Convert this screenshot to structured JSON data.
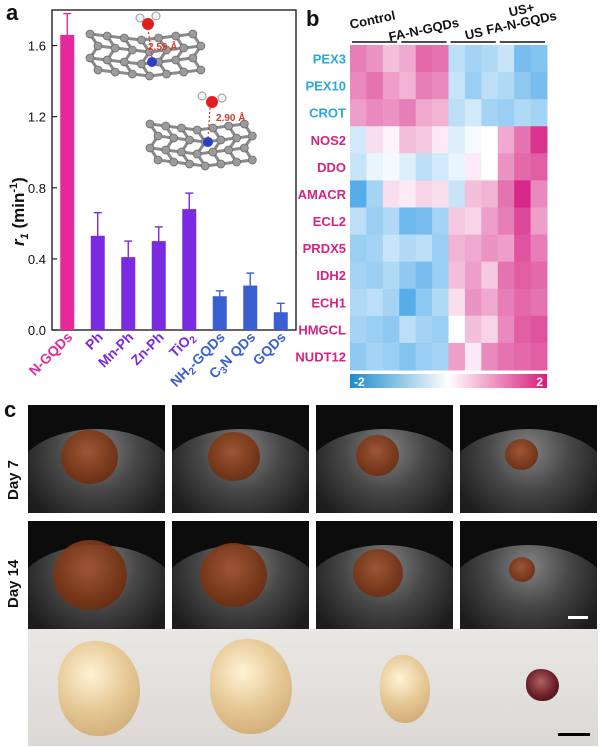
{
  "panels": {
    "a": "a",
    "b": "b",
    "c": "c"
  },
  "chart_data": [
    {
      "type": "bar",
      "ylabel": "r1 (min-1)",
      "ylim": [
        0,
        1.8
      ],
      "yticks": [
        "0.0",
        "0.4",
        "0.8",
        "1.2",
        "1.6"
      ],
      "categories": [
        "N-GQDs",
        "Ph",
        "Mn-Ph",
        "Zn-Ph",
        "TiO2",
        "NH2-GQDs",
        "C3N QDs",
        "GQDs"
      ],
      "category_colors": [
        "#e6289a",
        "#7a2ae0",
        "#7a2ae0",
        "#7a2ae0",
        "#7a2ae0",
        "#3a5fd0",
        "#3a5fd0",
        "#3a5fd0"
      ],
      "values": [
        1.66,
        0.53,
        0.41,
        0.5,
        0.68,
        0.19,
        0.25,
        0.1
      ],
      "errors": [
        0.12,
        0.13,
        0.09,
        0.08,
        0.09,
        0.03,
        0.07,
        0.05
      ],
      "annotations": [
        "2.59 Å",
        "2.90 Å"
      ]
    },
    {
      "type": "heatmap",
      "column_groups": [
        "Control",
        "FA-N-GQDs",
        "US",
        "US+\nFA-N-GQDs"
      ],
      "rows": [
        "PEX3",
        "PEX10",
        "CROT",
        "NOS2",
        "DDO",
        "AMACR",
        "ECL2",
        "PRDX5",
        "IDH2",
        "ECH1",
        "HMGCL",
        "NUDT12"
      ],
      "row_colors": [
        "#2aa8d8",
        "#2aa8d8",
        "#2aa8d8",
        "#d4247f",
        "#d4247f",
        "#d4247f",
        "#d4247f",
        "#d4247f",
        "#d4247f",
        "#d4247f",
        "#d4247f",
        "#d4247f"
      ],
      "colorbar": {
        "min": "-2",
        "max": "2"
      },
      "values": [
        [
          1.2,
          1.0,
          0.6,
          0.8,
          1.4,
          1.3,
          -0.6,
          -0.8,
          -0.7,
          -0.5,
          -1.2,
          -1.1
        ],
        [
          1.1,
          1.3,
          0.9,
          0.7,
          1.2,
          1.1,
          -0.5,
          -0.9,
          -0.6,
          -0.7,
          -1.0,
          -1.2
        ],
        [
          0.9,
          1.1,
          1.0,
          1.2,
          0.8,
          0.7,
          -0.6,
          -0.4,
          -0.8,
          -0.9,
          -0.7,
          -0.8
        ],
        [
          -0.4,
          0.3,
          0.1,
          0.6,
          0.5,
          0.2,
          -0.3,
          -0.1,
          0.0,
          0.8,
          1.3,
          1.9
        ],
        [
          -0.5,
          -0.2,
          -0.1,
          -0.3,
          -0.6,
          -0.4,
          -0.2,
          0.2,
          0.0,
          1.0,
          1.4,
          1.5
        ],
        [
          -1.5,
          -0.8,
          0.3,
          0.2,
          0.4,
          0.3,
          -0.5,
          0.6,
          0.7,
          1.3,
          2.0,
          1.1
        ],
        [
          -0.6,
          -0.9,
          -0.7,
          -1.3,
          -1.2,
          -0.8,
          0.5,
          0.4,
          0.9,
          1.2,
          1.7,
          0.9
        ],
        [
          -0.9,
          -0.8,
          -0.5,
          -0.7,
          -0.6,
          -0.9,
          0.7,
          0.8,
          1.0,
          0.9,
          1.6,
          1.2
        ],
        [
          -0.8,
          -0.9,
          -0.7,
          -1.0,
          -1.2,
          -0.9,
          0.6,
          0.9,
          0.5,
          1.3,
          1.5,
          1.4
        ],
        [
          -0.7,
          -0.6,
          -0.8,
          -1.5,
          -1.0,
          -0.7,
          0.3,
          1.0,
          0.8,
          1.2,
          1.4,
          1.3
        ],
        [
          -0.8,
          -0.9,
          -1.0,
          -0.6,
          -0.8,
          -0.9,
          0.0,
          0.6,
          0.4,
          1.1,
          1.5,
          1.6
        ],
        [
          -1.0,
          -0.8,
          -0.9,
          -1.1,
          -0.9,
          -0.8,
          0.9,
          0.2,
          1.1,
          1.3,
          1.4,
          1.5
        ]
      ]
    }
  ],
  "ultrasound": {
    "rows": [
      "Day 7",
      "Day 14"
    ],
    "tumor_scale": [
      [
        0.48,
        0.44,
        0.36,
        0.28
      ],
      [
        0.62,
        0.56,
        0.42,
        0.22
      ]
    ]
  }
}
